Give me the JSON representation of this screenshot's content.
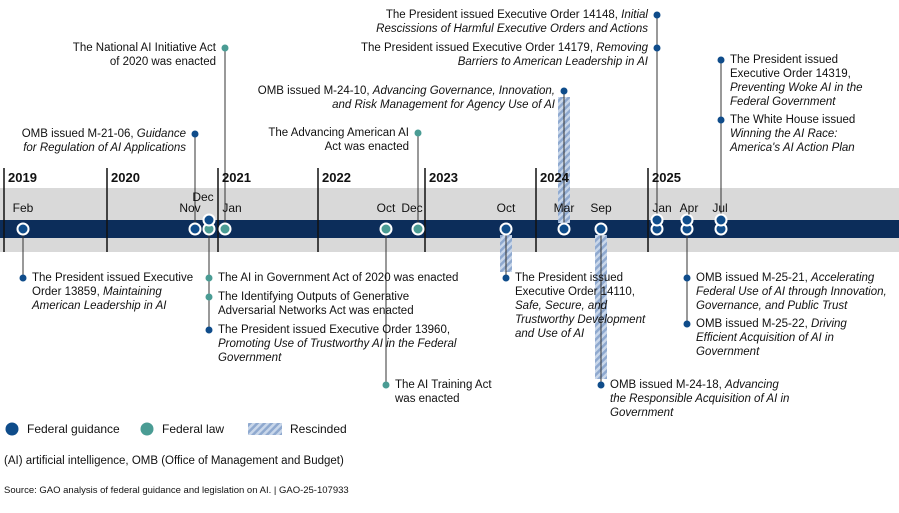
{
  "years": [
    "2019",
    "2020",
    "2021",
    "2022",
    "2023",
    "2024",
    "2025"
  ],
  "milestones": [
    {
      "month": "Feb",
      "events": [
        {
          "kind": "guidance",
          "text": "The President issued Executive Order 13859, ",
          "title": "Maintaining American Leadership in AI"
        }
      ]
    },
    {
      "month": "Nov",
      "events": [
        {
          "kind": "guidance",
          "text": "OMB issued M-21-06, ",
          "title": "Guidance for Regulation of AI Applications"
        }
      ]
    },
    {
      "month": "Dec",
      "events": [
        {
          "kind": "law",
          "text": "The AI in Government Act of 2020 was enacted"
        },
        {
          "kind": "law",
          "text": "The Identifying Outputs of Generative Adversarial Networks Act was enacted"
        },
        {
          "kind": "guidance",
          "text": "The President issued Executive Order 13960, ",
          "title": "Promoting Use of Trustworthy AI in the Federal Government"
        }
      ]
    },
    {
      "month": "Jan",
      "events": [
        {
          "kind": "law",
          "text": "The National AI Initiative Act of 2020 was enacted"
        }
      ]
    },
    {
      "month": "Oct",
      "events": [
        {
          "kind": "law",
          "text": "The AI Training Act was enacted"
        }
      ]
    },
    {
      "month": "Dec",
      "events": [
        {
          "kind": "law",
          "text": "The Advancing American AI Act was enacted"
        }
      ]
    },
    {
      "month": "Oct",
      "events": [
        {
          "kind": "guidance",
          "rescinded": true,
          "text": "The President issued Executive Order 14110, ",
          "title": "Safe, Secure, and Trustworthy Development and Use of AI"
        }
      ]
    },
    {
      "month": "Mar",
      "events": [
        {
          "kind": "guidance",
          "rescinded": true,
          "text": "OMB issued M-24-10, ",
          "title": "Advancing Governance, Innovation, and Risk Management for Agency Use of AI"
        }
      ]
    },
    {
      "month": "Sep",
      "events": [
        {
          "kind": "guidance",
          "rescinded": true,
          "text": "OMB issued M-24-18, ",
          "title": "Advancing the Responsible Acquisition of AI in Government"
        }
      ]
    },
    {
      "month": "Jan",
      "events": [
        {
          "kind": "guidance",
          "text": "The President issued Executive Order 14148, ",
          "title": "Initial Rescissions of Harmful Executive Orders and Actions"
        },
        {
          "kind": "guidance",
          "text": "The President issued Executive Order 14179, ",
          "title": "Removing Barriers to American Leadership in AI"
        }
      ]
    },
    {
      "month": "Apr",
      "events": [
        {
          "kind": "guidance",
          "text": "OMB issued M-25-21, ",
          "title": "Accelerating Federal Use of AI through Innovation, Governance, and Public Trust"
        },
        {
          "kind": "guidance",
          "text": "OMB issued M-25-22, ",
          "title": "Driving Efficient Acquisition of AI in Government"
        }
      ]
    },
    {
      "month": "Jul",
      "events": [
        {
          "kind": "guidance",
          "text": "The President issued Executive Order 14319, ",
          "title": "Preventing Woke AI in the Federal Government"
        },
        {
          "kind": "guidance",
          "text": "The White House issued ",
          "title": "Winning the AI Race: America's AI Action Plan"
        }
      ]
    }
  ],
  "legend": [
    "Federal guidance",
    "Federal law",
    "Rescinded"
  ],
  "note": "(AI) artificial intelligence, OMB (Office of Management and Budget)",
  "source": "Source: GAO analysis of federal guidance and legislation on AI.  |  GAO-25-107933"
}
